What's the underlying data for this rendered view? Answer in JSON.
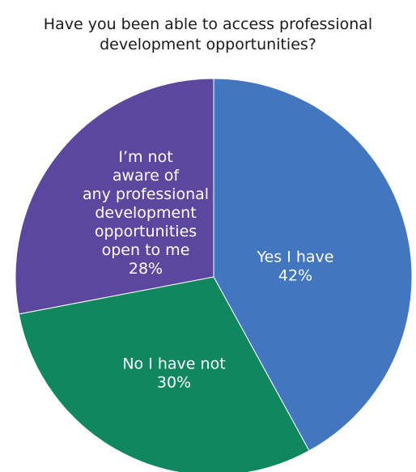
{
  "chart_data": {
    "type": "pie",
    "title_lines": [
      "Have you been able to access professional",
      "development opportunities?"
    ],
    "categories": [
      "Yes I have",
      "No I have not",
      "I’m not aware of any professional development opportunities open to me"
    ],
    "values": [
      42,
      30,
      28
    ],
    "value_labels": [
      "42%",
      "30%",
      "28%"
    ],
    "label_lines": [
      [
        "Yes I have",
        "42%"
      ],
      [
        "No I have not",
        "30%"
      ],
      [
        "I’m not",
        "aware of",
        "any professional",
        "development",
        "opportunities",
        "open to me",
        "28%"
      ]
    ],
    "colors": [
      "#4277BF",
      "#10875F",
      "#5B479D"
    ],
    "start_angle": "12 o'clock",
    "direction": "clockwise",
    "legend": "none"
  }
}
